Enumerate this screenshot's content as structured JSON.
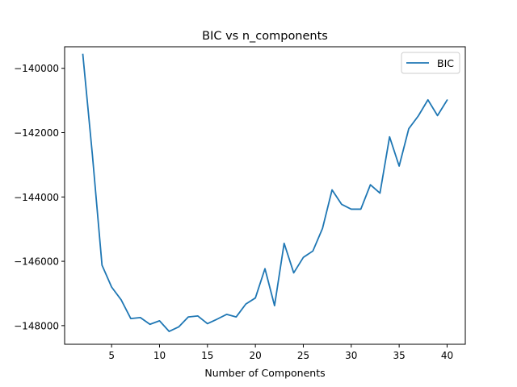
{
  "chart_data": {
    "type": "line",
    "title": "BIC vs n_components",
    "xlabel": "Number of Components",
    "ylabel": "",
    "xlim": [
      0.1,
      41.9
    ],
    "ylim": [
      -148580,
      -139330
    ],
    "x_ticks": [
      5,
      10,
      15,
      20,
      25,
      30,
      35,
      40
    ],
    "x_tick_labels": [
      "5",
      "10",
      "15",
      "20",
      "25",
      "30",
      "35",
      "40"
    ],
    "y_ticks": [
      -148000,
      -146000,
      -144000,
      -142000,
      -140000
    ],
    "y_tick_labels": [
      "−148000",
      "−146000",
      "−144000",
      "−142000",
      "−140000"
    ],
    "grid": false,
    "legend_position": "upper right",
    "series": [
      {
        "name": "BIC",
        "color": "#1f77b4",
        "x": [
          2,
          3,
          4,
          5,
          6,
          7,
          8,
          9,
          10,
          11,
          12,
          13,
          14,
          15,
          16,
          17,
          18,
          19,
          20,
          21,
          22,
          23,
          24,
          25,
          26,
          27,
          28,
          29,
          30,
          31,
          32,
          33,
          34,
          35,
          36,
          37,
          38,
          39,
          40
        ],
        "values": [
          -139570,
          -142700,
          -146120,
          -146800,
          -147200,
          -147780,
          -147750,
          -147960,
          -147850,
          -148180,
          -148040,
          -147730,
          -147700,
          -147940,
          -147800,
          -147650,
          -147730,
          -147330,
          -147140,
          -146230,
          -147380,
          -145440,
          -146360,
          -145880,
          -145680,
          -144980,
          -143780,
          -144230,
          -144380,
          -144380,
          -143620,
          -143880,
          -142130,
          -143040,
          -141880,
          -141480,
          -140980,
          -141470,
          -140990
        ]
      }
    ]
  }
}
